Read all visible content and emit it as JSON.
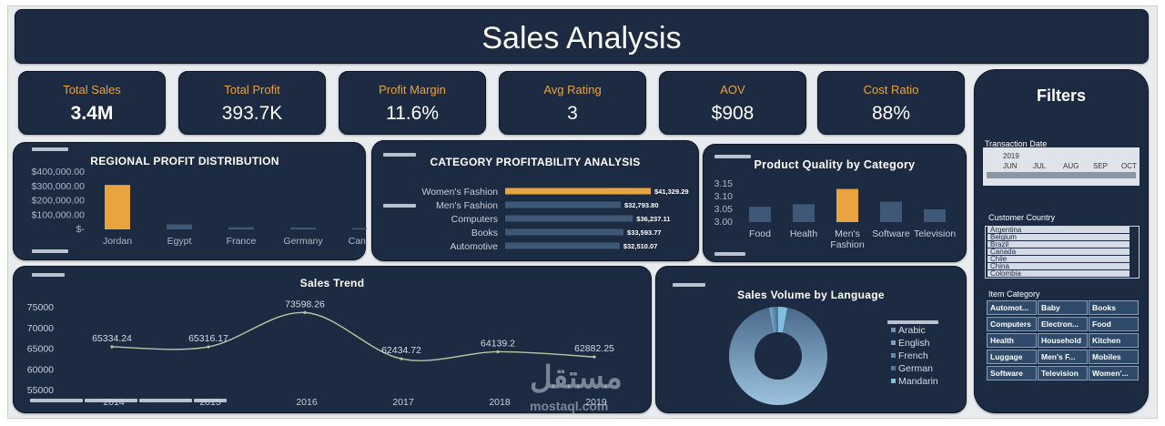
{
  "title": "Sales Analysis",
  "kpis": [
    {
      "label": "Total Sales",
      "value": "3.4M"
    },
    {
      "label": "Total Profit",
      "value": "393.7K"
    },
    {
      "label": "Profit Margin",
      "value": "11.6%"
    },
    {
      "label": "Avg Rating",
      "value": "3"
    },
    {
      "label": "AOV",
      "value": "$908"
    },
    {
      "label": "Cost Ratio",
      "value": "88%"
    }
  ],
  "colors": {
    "panel": "#1c2a42",
    "accent": "#e9a33f",
    "bar": "#3f5878",
    "line": "#b8c9a0"
  },
  "chart_data": [
    {
      "type": "bar",
      "title": "REGIONAL PROFIT DISTRIBUTION",
      "categories": [
        "Jordan",
        "Egypt",
        "France",
        "Germany",
        "Canada"
      ],
      "values": [
        310000,
        35000,
        14000,
        12000,
        9000
      ],
      "ytick_labels": [
        "$400,000.00",
        "$300,000.00",
        "$200,000.00",
        "$100,000.00",
        "$-"
      ],
      "ylim": [
        0,
        400000
      ],
      "highlight_category": "Jordan"
    },
    {
      "type": "bar",
      "orientation": "horizontal",
      "title": "CATEGORY PROFITABILITY ANALYSIS",
      "categories": [
        "Women's Fashion",
        "Men's Fashion",
        "Computers",
        "Books",
        "Automotive"
      ],
      "values": [
        41329.29,
        32793.8,
        36237.11,
        33593.77,
        32510.07
      ],
      "data_labels": [
        "$41,329.29",
        "$32,793.80",
        "$36,237.11",
        "$33,593.77",
        "$32,510.07"
      ],
      "highlight_category": "Women's Fashion"
    },
    {
      "type": "bar",
      "title": "Product Quality by Category",
      "categories": [
        "Food",
        "Health",
        "Men's Fashion",
        "Software",
        "Television"
      ],
      "category_lines": [
        [
          "Food"
        ],
        [
          "Health"
        ],
        [
          "Men's",
          "Fashion"
        ],
        [
          "Software"
        ],
        [
          "Television"
        ]
      ],
      "values": [
        3.06,
        3.07,
        3.13,
        3.08,
        3.05
      ],
      "ytick_labels": [
        "3.15",
        "3.10",
        "3.05",
        "3.00"
      ],
      "ylim": [
        3.0,
        3.15
      ],
      "highlight_category": "Men's Fashion"
    },
    {
      "type": "line",
      "title": "Sales Trend",
      "x": [
        "2014",
        "2015",
        "2016",
        "2017",
        "2018",
        "2019"
      ],
      "xtick_labels": [
        "2014",
        "2015",
        "2016",
        "2017",
        "2018",
        "2019"
      ],
      "values": [
        65334.24,
        65316.17,
        73598.26,
        62434.72,
        64139.2,
        62882.25
      ],
      "data_labels": [
        "65334.24",
        "65316.17",
        "73598.26",
        "62434.72",
        "64139.2",
        "62882.25"
      ],
      "ytick_labels": [
        "75000",
        "70000",
        "65000",
        "60000",
        "55000"
      ],
      "ylim": [
        55000,
        75000
      ]
    },
    {
      "type": "pie",
      "donut": true,
      "title": "Sales Volume by Language",
      "legend": [
        "Arabic",
        "English",
        "French",
        "German",
        "Mandarin"
      ],
      "legend_position": "right",
      "values": [
        94,
        1,
        1,
        1,
        3
      ]
    }
  ],
  "filters": {
    "title": "Filters",
    "transaction_date": {
      "label": "Transaction Date",
      "year": "2019",
      "months": [
        "JUN",
        "JUL",
        "AUG",
        "SEP",
        "OCT"
      ]
    },
    "customer_country": {
      "label": "Customer Country",
      "items": [
        "Argentina",
        "Belgium",
        "Brazil",
        "Canada",
        "Chile",
        "China",
        "Colombia"
      ]
    },
    "item_category": {
      "label": "Item Category",
      "items": [
        "Automot...",
        "Baby",
        "Books",
        "Computers",
        "Electron...",
        "Food",
        "Health",
        "Household",
        "Kitchen",
        "Luggage",
        "Men's F...",
        "Mobiles",
        "Software",
        "Television",
        "Women'..."
      ]
    }
  },
  "watermark": {
    "arabic": "مستقل",
    "latin": "mostaql.com"
  }
}
